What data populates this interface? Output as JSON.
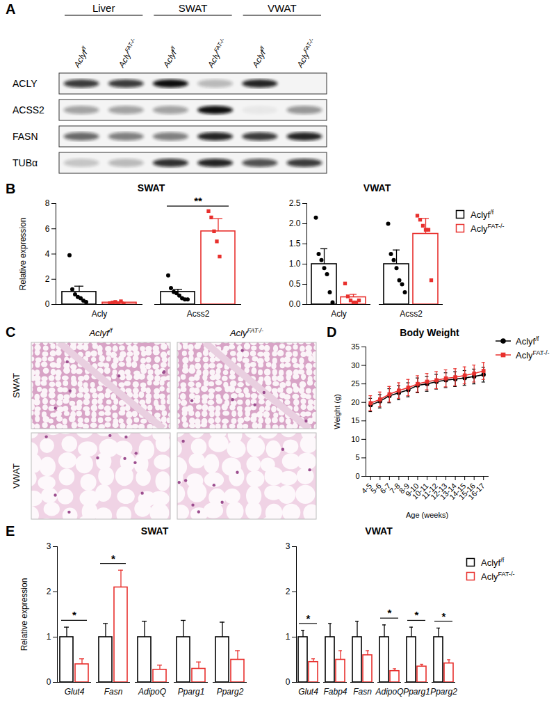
{
  "chart_data": [
    {
      "panel": "A",
      "type": "blot",
      "groups": [
        {
          "name": "Liver",
          "lanes": [
            "Aclyf/f",
            "AclyFAT-/-"
          ]
        },
        {
          "name": "SWAT",
          "lanes": [
            "Aclyf/f",
            "AclyFAT-/-"
          ]
        },
        {
          "name": "VWAT",
          "lanes": [
            "Aclyf/f",
            "AclyFAT-/-"
          ]
        }
      ],
      "rows": [
        {
          "name": "ACLY",
          "values": [
            0.8,
            0.8,
            1.0,
            0.25,
            0.9,
            0.0
          ]
        },
        {
          "name": "ACSS2",
          "values": [
            0.35,
            0.35,
            0.35,
            1.0,
            0.05,
            0.4
          ]
        },
        {
          "name": "FASN",
          "values": [
            0.6,
            0.5,
            0.5,
            0.9,
            0.8,
            0.9
          ]
        },
        {
          "name": "TUBα",
          "values": [
            0.2,
            0.25,
            0.85,
            0.9,
            0.7,
            0.8
          ]
        }
      ]
    },
    {
      "panel": "B",
      "type": "bar",
      "title": "SWAT",
      "ylabel": "Relative expression",
      "categories": [
        "Acly",
        "Acss2"
      ],
      "ylim": [
        0,
        8
      ],
      "yticks": [
        0,
        2,
        4,
        6,
        8
      ],
      "series": [
        {
          "name": "Aclyf/f",
          "color": "#000000",
          "marker": "circle",
          "values": [
            1.0,
            1.0
          ],
          "errors": [
            0.45,
            0.2
          ],
          "points": [
            [
              3.9,
              1.2,
              0.8,
              0.6,
              0.5,
              0.3,
              0.2
            ],
            [
              2.3,
              1.3,
              1.0,
              0.9,
              0.7,
              0.5,
              0.4,
              0.4
            ]
          ]
        },
        {
          "name": "AclyFAT-/-",
          "color": "#e8302d",
          "marker": "square",
          "values": [
            0.15,
            5.8
          ],
          "errors": [
            0.05,
            1.0
          ],
          "points": [
            [
              0.1,
              0.15,
              0.2,
              0.1,
              0.25,
              0.05
            ],
            [
              7.4,
              6.9,
              5.8,
              5.0,
              3.8
            ]
          ]
        }
      ],
      "annotations": [
        {
          "category": "Acss2",
          "text": "**"
        }
      ]
    },
    {
      "type": "bar",
      "title": "VWAT",
      "categories": [
        "Acly",
        "Acss2"
      ],
      "ylim": [
        0,
        2.5
      ],
      "yticks": [
        {
          "value": 0,
          "label": "0.0"
        },
        0.5,
        {
          "value": 1,
          "label": "1.0"
        },
        1.5,
        {
          "value": 2,
          "label": "2.0"
        },
        2.5
      ],
      "legend": "right",
      "series": [
        {
          "name": "Aclyf/f",
          "color": "#000000",
          "marker": "circle",
          "values": [
            1.0,
            1.0
          ],
          "errors": [
            0.38,
            0.35
          ],
          "points": [
            [
              2.15,
              1.25,
              1.1,
              0.9,
              0.75,
              0.3,
              0.05
            ],
            [
              2.0,
              1.25,
              1.1,
              0.9,
              0.6,
              0.5,
              0.3
            ]
          ]
        },
        {
          "name": "AclyFAT-/-",
          "color": "#e8302d",
          "marker": "square",
          "values": [
            0.18,
            1.75
          ],
          "errors": [
            0.07,
            0.38
          ],
          "points": [
            [
              0.52,
              0.2,
              0.1,
              0.05,
              0.05,
              0.1
            ],
            [
              2.2,
              2.1,
              1.95,
              1.85,
              1.85,
              0.6
            ]
          ]
        }
      ]
    },
    {
      "panel": "C",
      "type": "histology",
      "columns": [
        "Aclyf/f",
        "AclyFAT-/-"
      ],
      "rows": [
        "SWAT",
        "VWAT"
      ]
    },
    {
      "panel": "D",
      "type": "line",
      "title": "Body Weight",
      "xlabel": "Age (weeks)",
      "ylabel": "Weight (g)",
      "categories": [
        "4-5",
        "5-6",
        "6-7",
        "7-8",
        "8-9",
        "9-10",
        "10-11",
        "11-12",
        "12-13",
        "13-14",
        "14-15",
        "15-16",
        "16-17"
      ],
      "ylim": [
        0,
        35
      ],
      "yticks": [
        0,
        5,
        10,
        15,
        20,
        25,
        30,
        35
      ],
      "legend": "right",
      "series": [
        {
          "name": "Aclyf/f",
          "color": "#000000",
          "marker": "circle",
          "values": [
            19.3,
            20.3,
            21.8,
            22.6,
            23.4,
            24.6,
            25.0,
            25.6,
            26.0,
            26.3,
            26.6,
            27.0,
            27.5
          ],
          "errors": [
            1.8,
            1.8,
            1.9,
            1.9,
            1.9,
            2.0,
            2.0,
            2.0,
            2.0,
            2.0,
            2.0,
            2.0,
            2.0
          ]
        },
        {
          "name": "AclyFAT-/-",
          "color": "#e8302d",
          "marker": "square",
          "values": [
            19.8,
            20.8,
            22.2,
            23.2,
            24.0,
            25.0,
            25.6,
            26.0,
            26.5,
            26.8,
            27.3,
            27.8,
            28.5
          ],
          "errors": [
            2.0,
            2.0,
            2.1,
            2.1,
            2.2,
            2.2,
            2.2,
            2.3,
            2.3,
            2.3,
            2.3,
            2.3,
            2.3
          ]
        }
      ]
    },
    {
      "panel": "E",
      "type": "bar",
      "title": "SWAT",
      "ylabel": "Relative expression",
      "categories": [
        "Glut4",
        "Fasn",
        "AdipoQ",
        "Pparg1",
        "Pparg2"
      ],
      "ylim": [
        0,
        3
      ],
      "yticks": [
        0,
        1,
        2,
        3
      ],
      "series": [
        {
          "name": "Aclyf/f",
          "color": "#000000",
          "values": [
            1.0,
            1.0,
            1.0,
            1.0,
            1.0
          ],
          "errors": [
            0.22,
            0.3,
            0.35,
            0.37,
            0.33
          ]
        },
        {
          "name": "AclyFAT-/-",
          "color": "#e8302d",
          "values": [
            0.4,
            2.1,
            0.28,
            0.3,
            0.5
          ],
          "errors": [
            0.12,
            0.38,
            0.1,
            0.15,
            0.2
          ]
        }
      ],
      "annotations": [
        {
          "category": "Glut4",
          "text": "*"
        },
        {
          "category": "Fasn",
          "text": "*"
        }
      ]
    },
    {
      "type": "bar",
      "title": "VWAT",
      "categories": [
        "Glut4",
        "Fabp4",
        "Fasn",
        "AdipoQ",
        "Pparg1",
        "Pparg2"
      ],
      "ylim": [
        0,
        3
      ],
      "yticks": [
        0,
        1,
        2,
        3
      ],
      "legend": "right",
      "series": [
        {
          "name": "Aclyf/f",
          "color": "#000000",
          "values": [
            1.0,
            1.0,
            1.0,
            1.0,
            1.0,
            1.0
          ],
          "errors": [
            0.15,
            0.3,
            0.35,
            0.27,
            0.22,
            0.2
          ]
        },
        {
          "name": "AclyFAT-/-",
          "color": "#e8302d",
          "values": [
            0.45,
            0.5,
            0.6,
            0.25,
            0.35,
            0.42
          ],
          "errors": [
            0.07,
            0.2,
            0.1,
            0.05,
            0.05,
            0.08
          ]
        }
      ],
      "annotations": [
        {
          "category": "Glut4",
          "text": "*"
        },
        {
          "category": "AdipoQ",
          "text": "*"
        },
        {
          "category": "Pparg1",
          "text": "*"
        },
        {
          "category": "Pparg2",
          "text": "*"
        }
      ]
    }
  ]
}
